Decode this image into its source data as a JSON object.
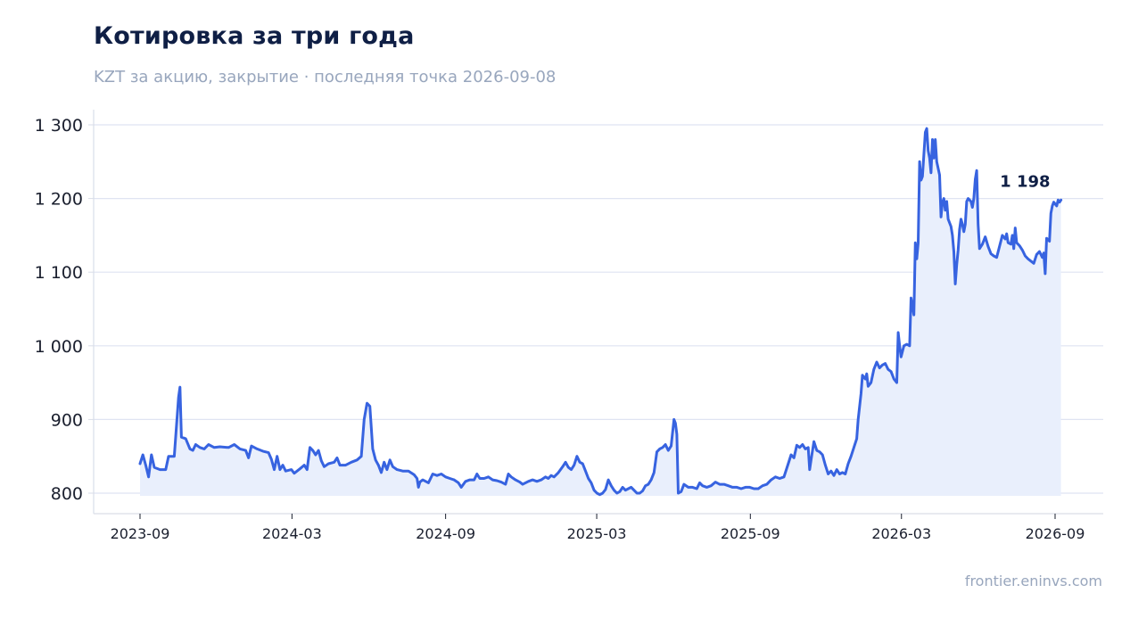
{
  "title": "Котировка за три года",
  "subtitle": "KZT за акцию, закрытие · последняя точка 2026-09-08",
  "footer": "frontier.eninvs.com",
  "colors": {
    "line": "#3763e0",
    "area": "#e9effc",
    "grid": "#dfe4f2",
    "axis": "#d9dee8"
  },
  "chart_data": {
    "type": "line",
    "series": [
      {
        "values": [
          [
            0,
            840
          ],
          [
            2,
            852
          ],
          [
            4,
            838
          ],
          [
            6,
            822
          ],
          [
            8,
            852
          ],
          [
            10,
            835
          ],
          [
            14,
            832
          ],
          [
            18,
            832
          ],
          [
            20,
            850
          ],
          [
            24,
            850
          ],
          [
            27,
            930
          ],
          [
            28,
            944
          ],
          [
            29,
            876
          ],
          [
            32,
            874
          ],
          [
            35,
            860
          ],
          [
            37,
            858
          ],
          [
            39,
            866
          ],
          [
            42,
            862
          ],
          [
            45,
            860
          ],
          [
            48,
            866
          ],
          [
            52,
            862
          ],
          [
            56,
            863
          ],
          [
            62,
            862
          ],
          [
            66,
            866
          ],
          [
            70,
            860
          ],
          [
            74,
            858
          ],
          [
            76,
            848
          ],
          [
            78,
            864
          ],
          [
            82,
            860
          ],
          [
            86,
            857
          ],
          [
            90,
            855
          ],
          [
            92,
            846
          ],
          [
            94,
            832
          ],
          [
            96,
            850
          ],
          [
            98,
            832
          ],
          [
            100,
            838
          ],
          [
            102,
            830
          ],
          [
            106,
            832
          ],
          [
            108,
            827
          ],
          [
            112,
            833
          ],
          [
            115,
            838
          ],
          [
            117,
            832
          ],
          [
            119,
            862
          ],
          [
            121,
            858
          ],
          [
            123,
            852
          ],
          [
            125,
            858
          ],
          [
            127,
            844
          ],
          [
            129,
            836
          ],
          [
            132,
            840
          ],
          [
            136,
            842
          ],
          [
            138,
            848
          ],
          [
            140,
            838
          ],
          [
            144,
            838
          ],
          [
            148,
            842
          ],
          [
            152,
            845
          ],
          [
            155,
            850
          ],
          [
            157,
            900
          ],
          [
            159,
            922
          ],
          [
            161,
            918
          ],
          [
            163,
            860
          ],
          [
            165,
            845
          ],
          [
            167,
            838
          ],
          [
            169,
            828
          ],
          [
            171,
            842
          ],
          [
            173,
            832
          ],
          [
            175,
            845
          ],
          [
            177,
            836
          ],
          [
            180,
            832
          ],
          [
            184,
            830
          ],
          [
            188,
            830
          ],
          [
            192,
            825
          ],
          [
            194,
            820
          ],
          [
            195,
            808
          ],
          [
            196,
            815
          ],
          [
            198,
            818
          ],
          [
            202,
            814
          ],
          [
            205,
            826
          ],
          [
            208,
            824
          ],
          [
            211,
            826
          ],
          [
            214,
            822
          ],
          [
            217,
            820
          ],
          [
            220,
            818
          ],
          [
            223,
            814
          ],
          [
            225,
            808
          ],
          [
            228,
            816
          ],
          [
            231,
            818
          ],
          [
            234,
            818
          ],
          [
            236,
            826
          ],
          [
            238,
            820
          ],
          [
            241,
            820
          ],
          [
            244,
            822
          ],
          [
            247,
            818
          ],
          [
            250,
            817
          ],
          [
            253,
            815
          ],
          [
            256,
            812
          ],
          [
            258,
            826
          ],
          [
            260,
            822
          ],
          [
            263,
            818
          ],
          [
            266,
            815
          ],
          [
            268,
            812
          ],
          [
            272,
            816
          ],
          [
            275,
            818
          ],
          [
            278,
            816
          ],
          [
            281,
            818
          ],
          [
            284,
            822
          ],
          [
            286,
            820
          ],
          [
            288,
            824
          ],
          [
            290,
            822
          ],
          [
            293,
            828
          ],
          [
            296,
            836
          ],
          [
            298,
            842
          ],
          [
            300,
            835
          ],
          [
            302,
            832
          ],
          [
            304,
            838
          ],
          [
            306,
            850
          ],
          [
            308,
            842
          ],
          [
            310,
            840
          ],
          [
            312,
            830
          ],
          [
            314,
            820
          ],
          [
            316,
            814
          ],
          [
            318,
            804
          ],
          [
            320,
            800
          ],
          [
            322,
            798
          ],
          [
            324,
            800
          ],
          [
            326,
            805
          ],
          [
            328,
            818
          ],
          [
            330,
            810
          ],
          [
            332,
            804
          ],
          [
            334,
            800
          ],
          [
            336,
            802
          ],
          [
            338,
            808
          ],
          [
            340,
            804
          ],
          [
            342,
            806
          ],
          [
            344,
            808
          ],
          [
            346,
            804
          ],
          [
            348,
            800
          ],
          [
            350,
            800
          ],
          [
            352,
            803
          ],
          [
            354,
            810
          ],
          [
            356,
            812
          ],
          [
            358,
            818
          ],
          [
            360,
            828
          ],
          [
            362,
            856
          ],
          [
            364,
            860
          ],
          [
            366,
            862
          ],
          [
            368,
            866
          ],
          [
            370,
            858
          ],
          [
            372,
            864
          ],
          [
            374,
            900
          ],
          [
            375,
            895
          ],
          [
            376,
            880
          ],
          [
            377,
            800
          ],
          [
            379,
            802
          ],
          [
            381,
            812
          ],
          [
            384,
            808
          ],
          [
            387,
            808
          ],
          [
            390,
            806
          ],
          [
            392,
            814
          ],
          [
            394,
            810
          ],
          [
            397,
            808
          ],
          [
            400,
            810
          ],
          [
            403,
            815
          ],
          [
            406,
            812
          ],
          [
            409,
            812
          ],
          [
            412,
            810
          ],
          [
            415,
            808
          ],
          [
            418,
            808
          ],
          [
            421,
            806
          ],
          [
            424,
            808
          ],
          [
            427,
            808
          ],
          [
            430,
            806
          ],
          [
            433,
            806
          ],
          [
            436,
            810
          ],
          [
            439,
            812
          ],
          [
            442,
            818
          ],
          [
            445,
            822
          ],
          [
            448,
            820
          ],
          [
            451,
            822
          ],
          [
            454,
            840
          ],
          [
            456,
            852
          ],
          [
            458,
            848
          ],
          [
            460,
            865
          ],
          [
            462,
            862
          ],
          [
            464,
            866
          ],
          [
            466,
            860
          ],
          [
            468,
            862
          ],
          [
            469,
            832
          ],
          [
            470,
            845
          ],
          [
            472,
            870
          ],
          [
            474,
            858
          ],
          [
            476,
            856
          ],
          [
            478,
            852
          ],
          [
            480,
            838
          ],
          [
            482,
            826
          ],
          [
            484,
            830
          ],
          [
            486,
            824
          ],
          [
            488,
            832
          ],
          [
            490,
            826
          ],
          [
            492,
            828
          ],
          [
            494,
            826
          ],
          [
            496,
            840
          ],
          [
            498,
            850
          ],
          [
            500,
            862
          ],
          [
            502,
            874
          ],
          [
            503,
            900
          ],
          [
            505,
            935
          ],
          [
            506,
            960
          ],
          [
            508,
            955
          ],
          [
            509,
            962
          ],
          [
            510,
            945
          ],
          [
            512,
            950
          ],
          [
            514,
            968
          ],
          [
            516,
            978
          ],
          [
            518,
            970
          ],
          [
            520,
            974
          ],
          [
            522,
            976
          ],
          [
            524,
            968
          ],
          [
            526,
            965
          ],
          [
            528,
            955
          ],
          [
            530,
            950
          ],
          [
            531,
            1018
          ],
          [
            532,
            1000
          ],
          [
            533,
            985
          ],
          [
            535,
            1000
          ],
          [
            537,
            1002
          ],
          [
            539,
            1000
          ],
          [
            540,
            1065
          ],
          [
            542,
            1042
          ],
          [
            543,
            1140
          ],
          [
            544,
            1118
          ],
          [
            545,
            1140
          ],
          [
            546,
            1250
          ],
          [
            547,
            1225
          ],
          [
            548,
            1230
          ],
          [
            550,
            1290
          ],
          [
            551,
            1295
          ],
          [
            552,
            1265
          ],
          [
            553,
            1255
          ],
          [
            554,
            1235
          ],
          [
            555,
            1280
          ],
          [
            556,
            1255
          ],
          [
            557,
            1280
          ],
          [
            558,
            1250
          ],
          [
            560,
            1232
          ],
          [
            561,
            1175
          ],
          [
            562,
            1195
          ],
          [
            563,
            1200
          ],
          [
            564,
            1184
          ],
          [
            565,
            1196
          ],
          [
            566,
            1172
          ],
          [
            568,
            1162
          ],
          [
            569,
            1150
          ],
          [
            570,
            1128
          ],
          [
            571,
            1084
          ],
          [
            572,
            1110
          ],
          [
            573,
            1130
          ],
          [
            574,
            1158
          ],
          [
            575,
            1172
          ],
          [
            576,
            1165
          ],
          [
            577,
            1155
          ],
          [
            578,
            1165
          ],
          [
            579,
            1196
          ],
          [
            580,
            1200
          ],
          [
            582,
            1196
          ],
          [
            583,
            1188
          ],
          [
            584,
            1200
          ],
          [
            585,
            1226
          ],
          [
            586,
            1238
          ],
          [
            587,
            1165
          ],
          [
            588,
            1132
          ],
          [
            590,
            1138
          ],
          [
            592,
            1148
          ],
          [
            594,
            1135
          ],
          [
            596,
            1125
          ],
          [
            598,
            1122
          ],
          [
            600,
            1120
          ],
          [
            602,
            1135
          ],
          [
            604,
            1150
          ],
          [
            606,
            1145
          ],
          [
            607,
            1152
          ],
          [
            608,
            1140
          ],
          [
            610,
            1138
          ],
          [
            611,
            1150
          ],
          [
            612,
            1132
          ],
          [
            613,
            1160
          ],
          [
            614,
            1140
          ],
          [
            616,
            1136
          ],
          [
            618,
            1130
          ],
          [
            620,
            1122
          ],
          [
            622,
            1118
          ],
          [
            624,
            1115
          ],
          [
            626,
            1112
          ],
          [
            628,
            1124
          ],
          [
            630,
            1128
          ],
          [
            632,
            1120
          ],
          [
            633,
            1126
          ],
          [
            634,
            1098
          ],
          [
            635,
            1146
          ],
          [
            637,
            1142
          ],
          [
            638,
            1180
          ],
          [
            639,
            1190
          ],
          [
            640,
            1195
          ],
          [
            642,
            1190
          ],
          [
            643,
            1198
          ],
          [
            644,
            1195
          ],
          [
            645,
            1198
          ]
        ]
      }
    ],
    "x_start": "2023-09-01",
    "x_ticks": [
      "2023-09",
      "2024-03",
      "2024-09",
      "2025-03",
      "2025-09",
      "2026-03",
      "2026-09"
    ],
    "ylim": [
      800,
      1300
    ],
    "y_ticks": [
      800,
      900,
      1000,
      1100,
      1200,
      1300
    ],
    "y_tick_labels": [
      "800",
      "900",
      "1 000",
      "1 100",
      "1 200",
      "1 300"
    ],
    "last_value_label": "1 198",
    "grid": true,
    "area_fill": true
  }
}
